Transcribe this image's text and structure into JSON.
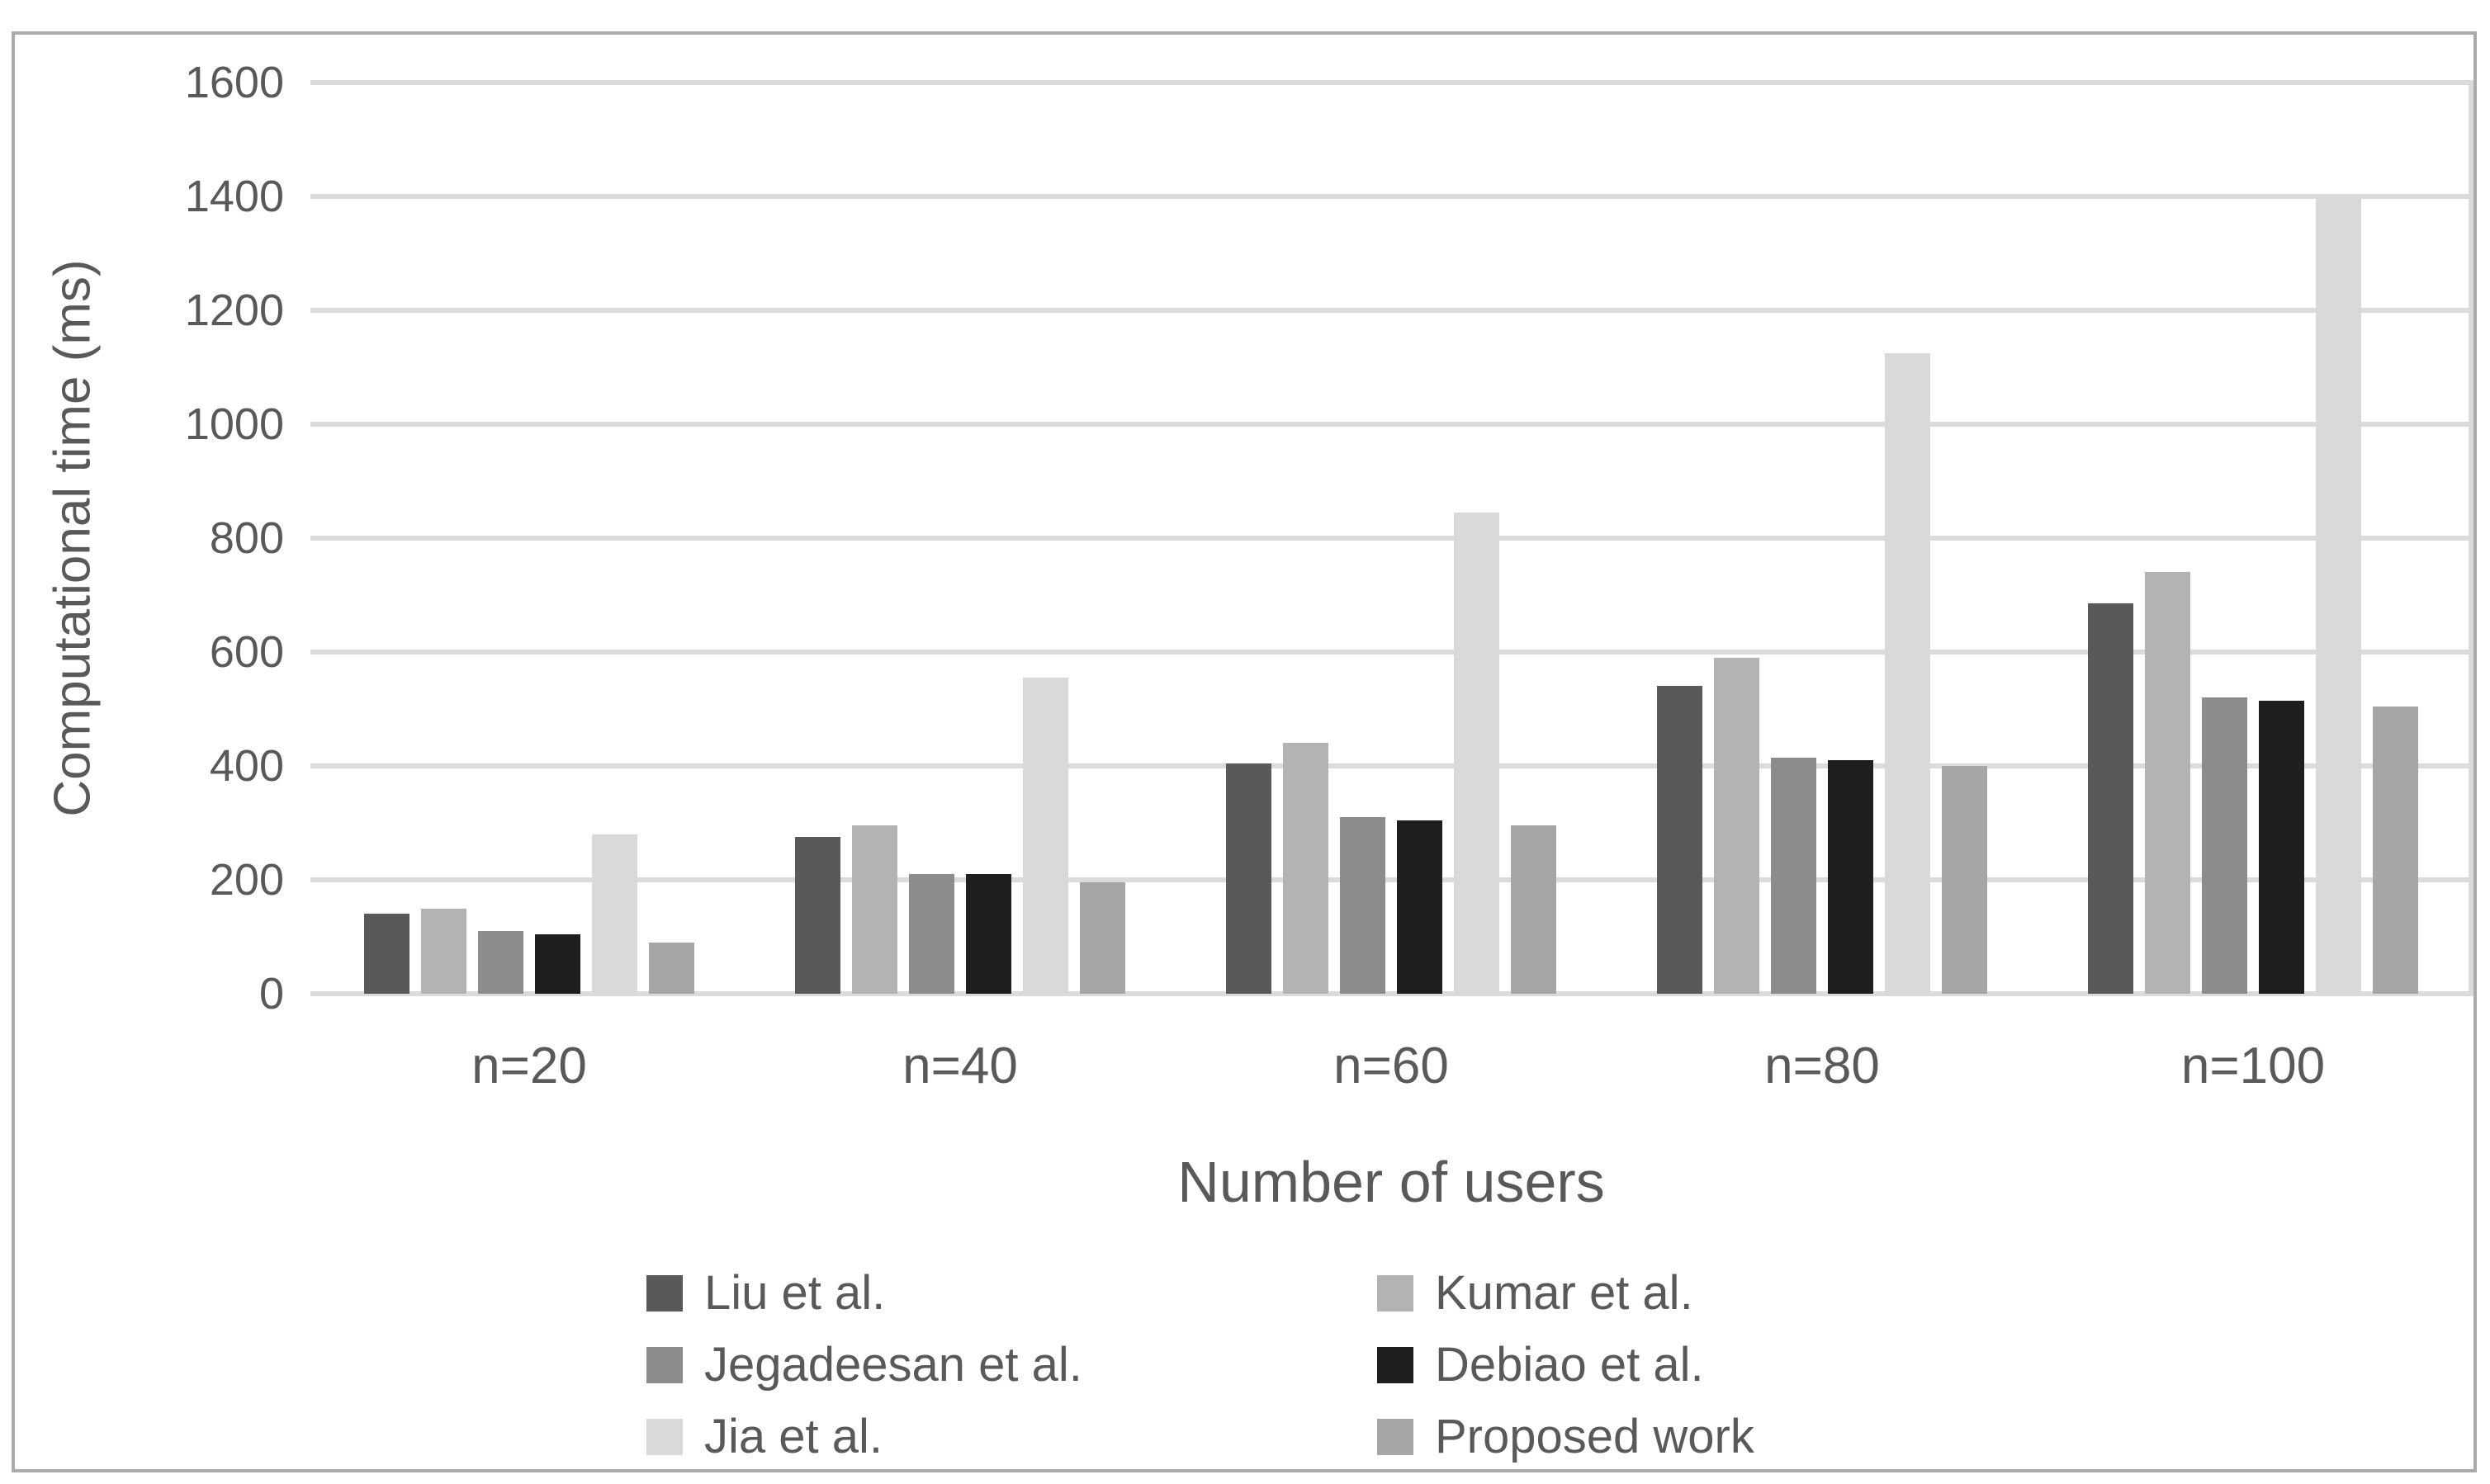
{
  "colors": {
    "frame_border": "#ababab",
    "gridline": "#dbdbdb",
    "text": "#595959"
  },
  "chart_data": {
    "type": "bar",
    "title": "",
    "xlabel": "Number of users",
    "ylabel": "Computational time (ms)",
    "categories": [
      "n=20",
      "n=40",
      "n=60",
      "n=80",
      "n=100"
    ],
    "series": [
      {
        "name": "Liu et al.",
        "color": "#595959",
        "values": [
          140,
          275,
          405,
          540,
          685
        ]
      },
      {
        "name": "Kumar et al.",
        "color": "#b3b3b3",
        "values": [
          150,
          295,
          440,
          590,
          740
        ]
      },
      {
        "name": "Jegadeesan et al.",
        "color": "#8c8c8c",
        "values": [
          110,
          210,
          310,
          415,
          520
        ]
      },
      {
        "name": "Debiao et al.",
        "color": "#1f1f1f",
        "values": [
          105,
          210,
          305,
          410,
          515
        ]
      },
      {
        "name": "Jia et al.",
        "color": "#d9d9d9",
        "values": [
          280,
          555,
          845,
          1125,
          1395
        ]
      },
      {
        "name": "Proposed work",
        "color": "#a6a6a6",
        "values": [
          90,
          195,
          295,
          400,
          505
        ]
      }
    ],
    "ylim": [
      0,
      1600
    ],
    "ytick_step": 200,
    "yticks": [
      0,
      200,
      400,
      600,
      800,
      1000,
      1200,
      1400,
      1600
    ],
    "grid": true,
    "legend_position": "bottom",
    "legend_columns": 2,
    "legend_order": [
      "Liu et al.",
      "Kumar et al.",
      "Jegadeesan et al.",
      "Debiao et al.",
      "Jia et al.",
      "Proposed work"
    ]
  }
}
